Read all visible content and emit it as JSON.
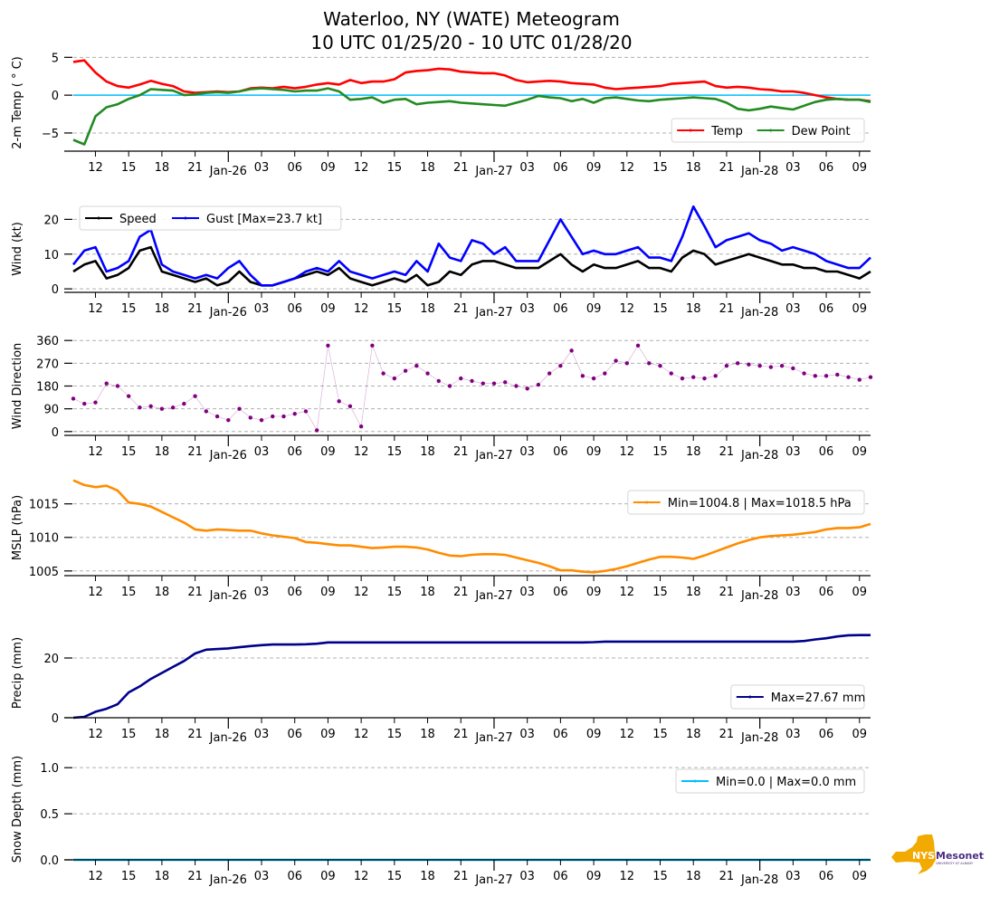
{
  "chart_data": {
    "type": "line",
    "title": [
      "Waterloo, NY (WATE) Meteogram",
      "10 UTC 01/25/20 - 10 UTC 01/28/20"
    ],
    "x": {
      "unit": "hours since 10 UTC 01/25/20",
      "range": [
        0,
        72
      ],
      "hour_ticks": [
        {
          "h": 2,
          "label": "12"
        },
        {
          "h": 5,
          "label": "15"
        },
        {
          "h": 8,
          "label": "18"
        },
        {
          "h": 11,
          "label": "21"
        },
        {
          "h": 17,
          "label": "03"
        },
        {
          "h": 20,
          "label": "06"
        },
        {
          "h": 23,
          "label": "09"
        },
        {
          "h": 26,
          "label": "12"
        },
        {
          "h": 29,
          "label": "15"
        },
        {
          "h": 32,
          "label": "18"
        },
        {
          "h": 35,
          "label": "21"
        },
        {
          "h": 41,
          "label": "03"
        },
        {
          "h": 44,
          "label": "06"
        },
        {
          "h": 47,
          "label": "09"
        },
        {
          "h": 50,
          "label": "12"
        },
        {
          "h": 53,
          "label": "15"
        },
        {
          "h": 56,
          "label": "18"
        },
        {
          "h": 59,
          "label": "21"
        },
        {
          "h": 65,
          "label": "03"
        },
        {
          "h": 68,
          "label": "06"
        },
        {
          "h": 71,
          "label": "09"
        }
      ],
      "day_ticks": [
        {
          "h": 14,
          "label": "Jan-26"
        },
        {
          "h": 38,
          "label": "Jan-27"
        },
        {
          "h": 62,
          "label": "Jan-28"
        }
      ]
    },
    "panels": [
      {
        "id": "temp",
        "ylabel": "2-m Temp ( $^\\circ$C)",
        "ylabel_display": "2-m Temp ( ° C)",
        "ylim": [
          -7.4,
          5.4
        ],
        "yticks": [
          {
            "v": 5,
            "label": "5"
          },
          {
            "v": 0,
            "label": "0"
          },
          {
            "v": -5,
            "label": "−5"
          }
        ],
        "grid": true,
        "reference_line": {
          "value": 0,
          "color": "#00bfff"
        },
        "legend": {
          "placement": "lower-right",
          "columns": 2
        },
        "series": [
          {
            "name": "Temp",
            "color": "#ff0000",
            "values": [
              4.4,
              4.6,
              3.0,
              1.8,
              1.2,
              1.0,
              1.4,
              1.9,
              1.5,
              1.2,
              0.5,
              0.3,
              0.4,
              0.5,
              0.4,
              0.5,
              0.9,
              1.0,
              0.9,
              1.1,
              0.9,
              1.1,
              1.4,
              1.6,
              1.4,
              2.0,
              1.6,
              1.8,
              1.8,
              2.1,
              3.0,
              3.2,
              3.3,
              3.5,
              3.4,
              3.1,
              3.0,
              2.9,
              2.9,
              2.6,
              2.0,
              1.7,
              1.8,
              1.9,
              1.8,
              1.6,
              1.5,
              1.4,
              1.0,
              0.8,
              0.9,
              1.0,
              1.1,
              1.2,
              1.5,
              1.6,
              1.7,
              1.8,
              1.2,
              1.0,
              1.1,
              1.0,
              0.8,
              0.7,
              0.5,
              0.5,
              0.3,
              0.0,
              -0.3,
              -0.5,
              -0.6,
              -0.6,
              -0.8
            ]
          },
          {
            "name": "Dew Point",
            "color": "#228b22",
            "values": [
              -5.9,
              -6.5,
              -2.8,
              -1.6,
              -1.2,
              -0.5,
              0.0,
              0.8,
              0.7,
              0.6,
              0.0,
              0.1,
              0.3,
              0.4,
              0.3,
              0.5,
              0.8,
              0.9,
              0.8,
              0.7,
              0.5,
              0.6,
              0.6,
              0.9,
              0.5,
              -0.6,
              -0.5,
              -0.3,
              -1.0,
              -0.6,
              -0.5,
              -1.2,
              -1.0,
              -0.9,
              -0.8,
              -1.0,
              -1.1,
              -1.2,
              -1.3,
              -1.4,
              -1.0,
              -0.6,
              -0.1,
              -0.3,
              -0.4,
              -0.8,
              -0.5,
              -1.0,
              -0.4,
              -0.3,
              -0.5,
              -0.7,
              -0.8,
              -0.6,
              -0.5,
              -0.4,
              -0.3,
              -0.4,
              -0.5,
              -1.0,
              -1.8,
              -2.0,
              -1.8,
              -1.5,
              -1.7,
              -1.9,
              -1.4,
              -0.9,
              -0.6,
              -0.5,
              -0.6,
              -0.6,
              -0.9
            ]
          }
        ]
      },
      {
        "id": "wind",
        "ylabel": "Wind (kt)",
        "ylim": [
          -1,
          24
        ],
        "yticks": [
          {
            "v": 20,
            "label": "20"
          },
          {
            "v": 10,
            "label": "10"
          },
          {
            "v": 0,
            "label": "0"
          }
        ],
        "grid": true,
        "legend": {
          "placement": "upper-left",
          "columns": 2
        },
        "series": [
          {
            "name": "Speed",
            "color": "#000000",
            "values": [
              5,
              7,
              8,
              3,
              4,
              6,
              11,
              12,
              5,
              4,
              3,
              2,
              3,
              1,
              2,
              5,
              2,
              1,
              1,
              2,
              3,
              4,
              5,
              4,
              6,
              3,
              2,
              1,
              2,
              3,
              2,
              4,
              1,
              2,
              5,
              4,
              7,
              8,
              8,
              7,
              6,
              6,
              6,
              8,
              10,
              7,
              5,
              7,
              6,
              6,
              7,
              8,
              6,
              6,
              5,
              9,
              11,
              10,
              7,
              8,
              9,
              10,
              9,
              8,
              7,
              7,
              6,
              6,
              5,
              5,
              4,
              3,
              5
            ]
          },
          {
            "name": "Gust [Max=23.7 kt]",
            "color": "#0000ff",
            "values": [
              7,
              11,
              12,
              5,
              6,
              8,
              15,
              17,
              7,
              5,
              4,
              3,
              4,
              3,
              6,
              8,
              4,
              1,
              1,
              2,
              3,
              5,
              6,
              5,
              8,
              5,
              4,
              3,
              4,
              5,
              4,
              8,
              5,
              13,
              9,
              8,
              14,
              13,
              10,
              12,
              8,
              8,
              8,
              14,
              20,
              15,
              10,
              11,
              10,
              10,
              11,
              12,
              9,
              9,
              8,
              15,
              23.7,
              18,
              12,
              14,
              15,
              16,
              14,
              13,
              11,
              12,
              11,
              10,
              8,
              7,
              6,
              6,
              9
            ]
          }
        ]
      },
      {
        "id": "wdir",
        "ylabel": "Wind Direction",
        "ylim": [
          -15,
          375
        ],
        "yticks": [
          {
            "v": 360,
            "label": "360"
          },
          {
            "v": 270,
            "label": "270"
          },
          {
            "v": 180,
            "label": "180"
          },
          {
            "v": 90,
            "label": "90"
          },
          {
            "v": 0,
            "label": "0"
          }
        ],
        "grid": true,
        "style": "points",
        "series": [
          {
            "name": "Wind Direction",
            "color": "#800080",
            "values": [
              130,
              110,
              115,
              190,
              180,
              140,
              95,
              100,
              90,
              95,
              110,
              140,
              80,
              60,
              45,
              90,
              55,
              45,
              60,
              60,
              70,
              80,
              5,
              340,
              120,
              100,
              20,
              340,
              230,
              210,
              240,
              260,
              230,
              200,
              180,
              210,
              200,
              190,
              190,
              195,
              180,
              170,
              185,
              230,
              260,
              320,
              220,
              210,
              230,
              280,
              270,
              340,
              270,
              260,
              230,
              210,
              215,
              210,
              220,
              260,
              270,
              265,
              260,
              255,
              260,
              250,
              230,
              220,
              220,
              225,
              215,
              205,
              215
            ]
          }
        ]
      },
      {
        "id": "mslp",
        "ylabel": "MSLP (hPa)",
        "ylim": [
          1004.3,
          1018.6
        ],
        "yticks": [
          {
            "v": 1015,
            "label": "1015"
          },
          {
            "v": 1010,
            "label": "1010"
          },
          {
            "v": 1005,
            "label": "1005"
          }
        ],
        "grid": true,
        "legend": {
          "placement": "upper-right",
          "columns": 1
        },
        "series": [
          {
            "name": "Min=1004.8 | Max=1018.5 hPa",
            "color": "#ff8c00",
            "values": [
              1018.5,
              1017.8,
              1017.5,
              1017.7,
              1017.0,
              1015.2,
              1015.0,
              1014.6,
              1013.8,
              1013.0,
              1012.2,
              1011.2,
              1011.0,
              1011.2,
              1011.1,
              1011.0,
              1011.0,
              1010.6,
              1010.3,
              1010.1,
              1009.9,
              1009.3,
              1009.2,
              1009.0,
              1008.8,
              1008.8,
              1008.6,
              1008.4,
              1008.5,
              1008.6,
              1008.6,
              1008.5,
              1008.2,
              1007.7,
              1007.3,
              1007.2,
              1007.4,
              1007.5,
              1007.5,
              1007.4,
              1007.0,
              1006.6,
              1006.2,
              1005.7,
              1005.1,
              1005.1,
              1004.9,
              1004.8,
              1005.0,
              1005.3,
              1005.7,
              1006.2,
              1006.7,
              1007.1,
              1007.1,
              1007.0,
              1006.8,
              1007.3,
              1007.9,
              1008.5,
              1009.1,
              1009.6,
              1010.0,
              1010.2,
              1010.3,
              1010.4,
              1010.6,
              1010.8,
              1011.2,
              1011.4,
              1011.4,
              1011.5,
              1012.0
            ]
          }
        ]
      },
      {
        "id": "precip",
        "ylabel": "Precip (mm)",
        "ylim": [
          0,
          30
        ],
        "yticks": [
          {
            "v": 20,
            "label": "20"
          },
          {
            "v": 0,
            "label": "0"
          }
        ],
        "grid": true,
        "legend": {
          "placement": "lower-right",
          "columns": 1
        },
        "series": [
          {
            "name": "Max=27.67 mm",
            "color": "#00008b",
            "values": [
              0,
              0.3,
              2.0,
              3.0,
              4.5,
              8.5,
              10.5,
              13.0,
              15.0,
              17.0,
              19.0,
              21.5,
              22.8,
              23.0,
              23.2,
              23.6,
              24.0,
              24.3,
              24.5,
              24.5,
              24.5,
              24.6,
              24.8,
              25.2,
              25.2,
              25.2,
              25.2,
              25.2,
              25.2,
              25.2,
              25.2,
              25.2,
              25.2,
              25.2,
              25.2,
              25.2,
              25.2,
              25.2,
              25.2,
              25.2,
              25.2,
              25.2,
              25.2,
              25.2,
              25.2,
              25.2,
              25.2,
              25.3,
              25.5,
              25.5,
              25.5,
              25.5,
              25.5,
              25.5,
              25.5,
              25.5,
              25.5,
              25.5,
              25.5,
              25.5,
              25.5,
              25.5,
              25.5,
              25.5,
              25.5,
              25.5,
              25.7,
              26.2,
              26.6,
              27.2,
              27.6,
              27.67,
              27.67
            ]
          }
        ]
      },
      {
        "id": "snow",
        "ylabel": "Snow Depth (mm)",
        "ylim": [
          0,
          1.1
        ],
        "yticks": [
          {
            "v": 1.0,
            "label": "1.0"
          },
          {
            "v": 0.5,
            "label": "0.5"
          },
          {
            "v": 0.0,
            "label": "0.0"
          }
        ],
        "grid": true,
        "legend": {
          "placement": "upper-right",
          "columns": 1
        },
        "series": [
          {
            "name": "Min=0.0 | Max=0.0 mm",
            "color": "#00bfff",
            "values": [
              0,
              0,
              0,
              0,
              0,
              0,
              0,
              0,
              0,
              0,
              0,
              0,
              0,
              0,
              0,
              0,
              0,
              0,
              0,
              0,
              0,
              0,
              0,
              0,
              0,
              0,
              0,
              0,
              0,
              0,
              0,
              0,
              0,
              0,
              0,
              0,
              0,
              0,
              0,
              0,
              0,
              0,
              0,
              0,
              0,
              0,
              0,
              0,
              0,
              0,
              0,
              0,
              0,
              0,
              0,
              0,
              0,
              0,
              0,
              0,
              0,
              0,
              0,
              0,
              0,
              0,
              0,
              0,
              0,
              0,
              0,
              0,
              0
            ]
          }
        ]
      }
    ]
  },
  "logo": {
    "text_primary": "NYS",
    "text_secondary": "Mesonet",
    "text_sub": "UNIVERSITY AT ALBANY",
    "colors": {
      "state": "#f2a900",
      "text": "#4b2e83"
    }
  }
}
